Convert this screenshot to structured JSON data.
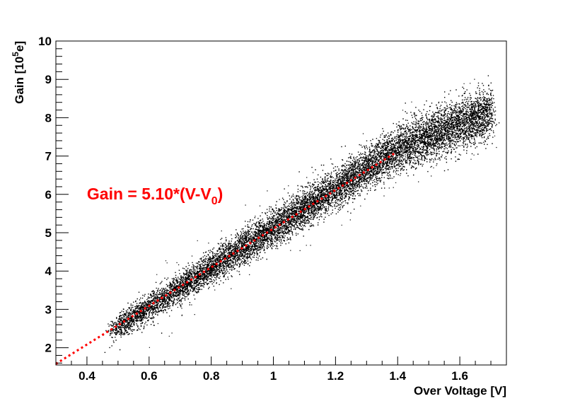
{
  "chart_data": {
    "type": "scatter",
    "xlabel": "Over Voltage [V]",
    "ylabel": {
      "prefix": "Gain [10",
      "sup": "5",
      "suffix": "e]"
    },
    "xlim": [
      0.3,
      1.75
    ],
    "ylim": [
      1.55,
      10.0
    ],
    "xticks": [
      {
        "value": 0.4,
        "label": "0.4"
      },
      {
        "value": 0.6,
        "label": "0.6"
      },
      {
        "value": 0.8,
        "label": "0.8"
      },
      {
        "value": 1.0,
        "label": "1"
      },
      {
        "value": 1.2,
        "label": "1.2"
      },
      {
        "value": 1.4,
        "label": "1.4"
      },
      {
        "value": 1.6,
        "label": "1.6"
      }
    ],
    "yticks": [
      {
        "value": 2,
        "label": "2"
      },
      {
        "value": 3,
        "label": "3"
      },
      {
        "value": 4,
        "label": "4"
      },
      {
        "value": 5,
        "label": "5"
      },
      {
        "value": 6,
        "label": "6"
      },
      {
        "value": 7,
        "label": "7"
      },
      {
        "value": 8,
        "label": "8"
      },
      {
        "value": 9,
        "label": "9"
      },
      {
        "value": 10,
        "label": "10"
      }
    ],
    "grid": false,
    "series": [
      {
        "kind": "scatter-cloud",
        "color": "#000000",
        "x_range": [
          0.47,
          1.72
        ],
        "y_range": [
          2.3,
          9.5
        ],
        "trend": [
          [
            0.5,
            2.55
          ],
          [
            1.4,
            7.2
          ],
          [
            1.65,
            8.0
          ]
        ]
      },
      {
        "kind": "fit-line",
        "color": "#ff0000",
        "style": "dotted",
        "x": [
          0.3,
          1.39
        ],
        "y": [
          1.58,
          7.07
        ]
      }
    ],
    "annotation": {
      "prefix": "Gain = 5.10*(V-V",
      "sub": "0",
      "suffix": ")",
      "x": 0.4,
      "y": 6.0,
      "color": "#ff0000"
    }
  }
}
